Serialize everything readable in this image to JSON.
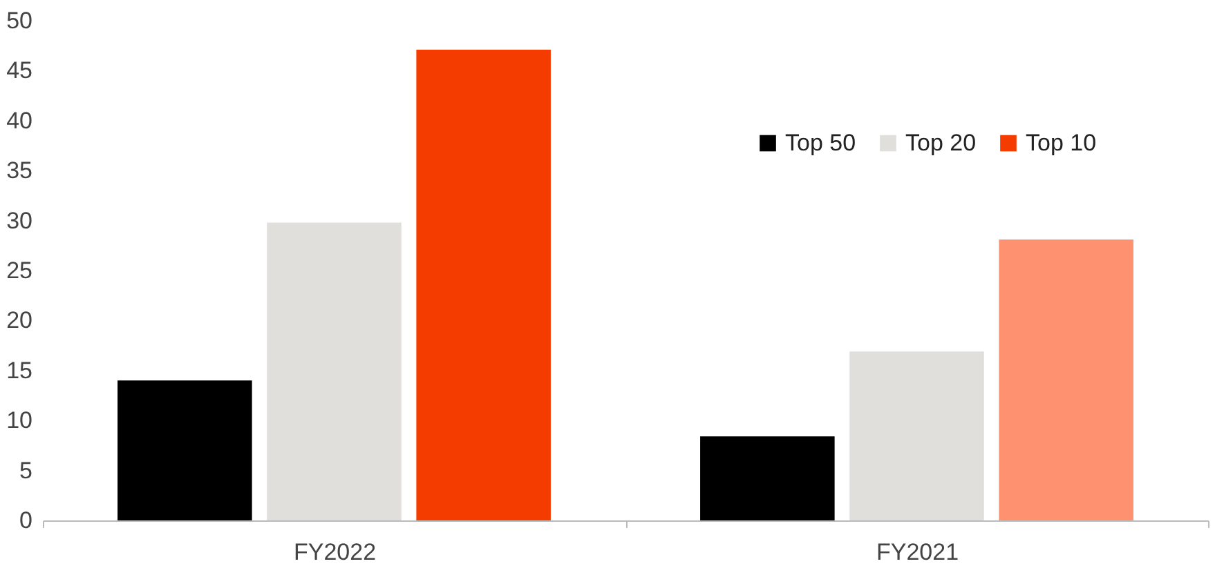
{
  "chart_data": {
    "type": "bar",
    "categories": [
      "FY2022",
      "FY2021"
    ],
    "series": [
      {
        "name": "Top 50",
        "color": "#000000",
        "values": [
          14,
          8.4
        ]
      },
      {
        "name": "Top 20",
        "color": "#e0dfdc",
        "values": [
          29.8,
          16.9
        ]
      },
      {
        "name": "Top 10",
        "color": "#f53c00",
        "colors": [
          "#f53c00",
          "#fe9270"
        ],
        "values": [
          47.1,
          28.1
        ]
      }
    ],
    "ylim": [
      0,
      50
    ],
    "yticks": [
      0,
      5,
      10,
      15,
      20,
      25,
      30,
      35,
      40,
      45,
      50
    ],
    "grid": false,
    "legend": "top right"
  }
}
